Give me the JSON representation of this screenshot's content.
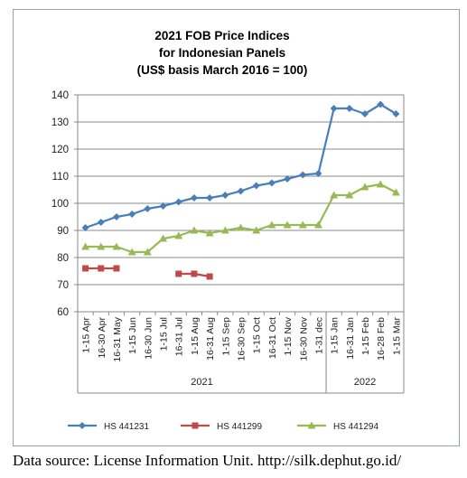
{
  "chart_data": {
    "type": "line",
    "title": [
      "2021 FOB Price Indices",
      "for Indonesian Panels",
      "(US$ basis March 2016 = 100)"
    ],
    "ylim": [
      60,
      140
    ],
    "yticks": [
      60,
      70,
      80,
      90,
      100,
      110,
      120,
      130,
      140
    ],
    "grid": true,
    "legend_position": "bottom",
    "categories": [
      "1-15 Apr",
      "16-30 Apr",
      "16-31 May",
      "1-15 Jun",
      "16-30 Jun",
      "1-15 Jul",
      "16-31 Jul",
      "1-15 Aug",
      "16-31 Aug",
      "1-15 Sep",
      "16-30 Sep",
      "1-15 Oct",
      "16-31 Oct",
      "1-15 Nov",
      "16-30 Nov",
      "1-31 dec",
      "1-15 Jan",
      "16-31 Jan",
      "1-15 Feb",
      "16-28 Feb",
      "1-15 Mar"
    ],
    "category_groups": [
      {
        "label": "2021",
        "start": 0,
        "end": 15
      },
      {
        "label": "2022",
        "start": 16,
        "end": 20
      }
    ],
    "series": [
      {
        "name": "HS 441231",
        "color": "#4a7ebb",
        "marker": "diamond",
        "values": [
          91,
          93,
          95,
          96,
          98,
          99,
          100.5,
          102,
          102,
          103,
          104.5,
          106.5,
          107.5,
          109,
          110.5,
          111,
          135,
          135,
          133,
          136.5,
          133
        ]
      },
      {
        "name": "HS 441299",
        "color": "#be4b48",
        "marker": "square",
        "values": [
          76,
          76,
          76,
          null,
          null,
          null,
          74,
          74,
          73,
          null,
          null,
          null,
          null,
          null,
          null,
          null,
          null,
          null,
          null,
          null,
          null
        ]
      },
      {
        "name": "HS 441294",
        "color": "#98b954",
        "marker": "triangle",
        "values": [
          84,
          84,
          84,
          82,
          82,
          87,
          88,
          90,
          89,
          90,
          91,
          90,
          92,
          92,
          92,
          92,
          103,
          103,
          106,
          107,
          104
        ]
      }
    ]
  },
  "source_note": "Data source: License Information Unit. http://silk.dephut.go.id/"
}
